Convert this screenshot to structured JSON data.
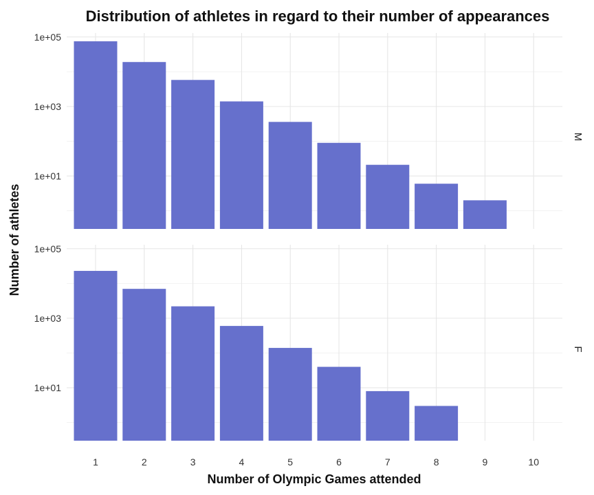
{
  "chart_data": {
    "type": "bar",
    "title": "Distribution of athletes in regard to their number of appearances",
    "xlabel": "Number of Olympic Games attended",
    "ylabel": "Number of athletes",
    "scale_y": "log10",
    "ylim": [
      0.3,
      130000
    ],
    "y_ticks": [
      {
        "value": 100000,
        "label": "1e+05"
      },
      {
        "value": 1000,
        "label": "1e+03"
      },
      {
        "value": 10,
        "label": "1e+01"
      }
    ],
    "categories": [
      "1",
      "2",
      "3",
      "4",
      "5",
      "6",
      "7",
      "8",
      "9",
      "10"
    ],
    "bar_color": "#6670cc",
    "grid": true,
    "facets": [
      {
        "label": "M",
        "values": [
          75000,
          19000,
          5800,
          1400,
          360,
          90,
          21,
          6,
          2,
          null
        ]
      },
      {
        "label": "F",
        "values": [
          23000,
          7000,
          2200,
          600,
          140,
          40,
          8,
          3,
          null,
          null
        ]
      }
    ]
  }
}
